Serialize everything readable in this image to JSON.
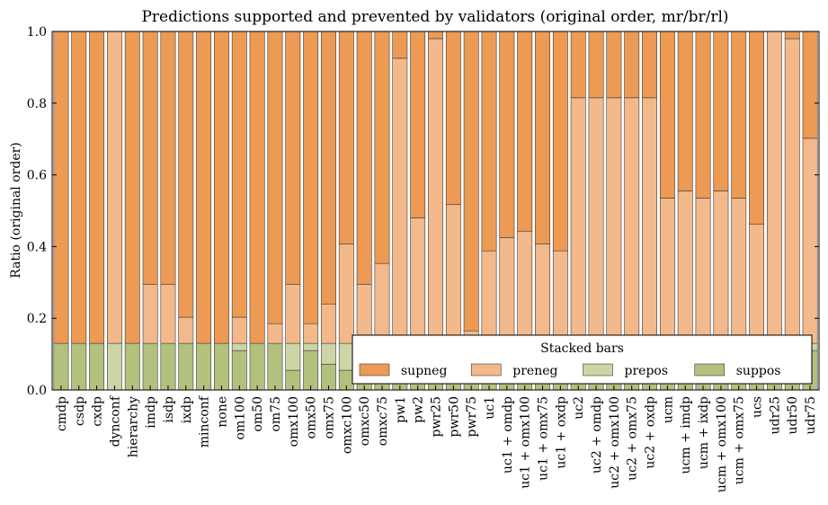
{
  "chart_data": {
    "type": "bar",
    "stacked": true,
    "title": "Predictions supported and prevented by validators (original order, mr/br/rl)",
    "xlabel": "",
    "ylabel": "Ratio (original order)",
    "ylim": [
      0,
      1
    ],
    "yticks": [
      "0.0",
      "0.2",
      "0.4",
      "0.6",
      "0.8",
      "1.0"
    ],
    "grid": false,
    "legend": {
      "title": "Stacked bars",
      "placement": "lower-right",
      "columns": 4
    },
    "categories": [
      "cmdp",
      "csdp",
      "cxdp",
      "dynconf",
      "hierarchy",
      "imdp",
      "isdp",
      "ixdp",
      "minconf",
      "none",
      "om100",
      "om50",
      "om75",
      "omx100",
      "omx50",
      "omx75",
      "omxc100",
      "omxc50",
      "omxc75",
      "pw1",
      "pw2",
      "pwr25",
      "pwr50",
      "pwr75",
      "uc1",
      "uc1 + omdp",
      "uc1 + omx100",
      "uc1 + omx75",
      "uc1 + oxdp",
      "uc2",
      "uc2 + omdp",
      "uc2 + omx100",
      "uc2 + omx75",
      "uc2 + oxdp",
      "ucm",
      "ucm + imdp",
      "ucm + ixdp",
      "ucm + omx100",
      "ucm + omx75",
      "ucs",
      "udr25",
      "udr50",
      "udr75"
    ],
    "series": [
      {
        "name": "suppos",
        "color": "#b3c17f",
        "values": [
          0.13,
          0.13,
          0.13,
          0,
          0.13,
          0.13,
          0.13,
          0.13,
          0.13,
          0.13,
          0.11,
          0.13,
          0.13,
          0.055,
          0.11,
          0.072,
          0.055,
          0.11,
          0.11,
          0.11,
          0.11,
          0.11,
          0.11,
          0.11,
          0.11,
          0.11,
          0.11,
          0.11,
          0.11,
          0.11,
          0.11,
          0.11,
          0.11,
          0.11,
          0.11,
          0.11,
          0.11,
          0.11,
          0.11,
          0.11,
          0.11,
          0.11,
          0.11
        ]
      },
      {
        "name": "prepos",
        "color": "#ccd5a6",
        "values": [
          0,
          0,
          0,
          0.13,
          0,
          0,
          0,
          0,
          0,
          0,
          0.02,
          0,
          0,
          0.075,
          0.02,
          0.058,
          0.075,
          0.02,
          0.02,
          0.02,
          0.02,
          0.02,
          0.02,
          0.02,
          0.02,
          0.02,
          0.02,
          0.02,
          0.02,
          0.02,
          0.02,
          0.02,
          0.02,
          0.02,
          0.02,
          0.02,
          0.02,
          0.02,
          0.02,
          0.02,
          0.02,
          0.02,
          0.02
        ]
      },
      {
        "name": "preneg",
        "color": "#f3b98a",
        "values": [
          0,
          0,
          0,
          0.87,
          0,
          0.165,
          0.165,
          0.073,
          0,
          0,
          0.073,
          0,
          0.055,
          0.165,
          0.055,
          0.11,
          0.277,
          0.165,
          0.223,
          0.795,
          0.35,
          0.85,
          0.387,
          0.035,
          0.258,
          0.295,
          0.313,
          0.277,
          0.258,
          0.685,
          0.685,
          0.685,
          0.685,
          0.685,
          0.405,
          0.425,
          0.405,
          0.425,
          0.405,
          0.333,
          0.87,
          0.85,
          0.572
        ]
      },
      {
        "name": "supneg",
        "color": "#ec9a54",
        "values": [
          0.87,
          0.87,
          0.87,
          0,
          0.87,
          0.705,
          0.705,
          0.797,
          0.87,
          0.87,
          0.797,
          0.87,
          0.815,
          0.705,
          0.815,
          0.76,
          0.593,
          0.705,
          0.647,
          0.075,
          0.52,
          0.02,
          0.483,
          0.835,
          0.612,
          0.575,
          0.557,
          0.593,
          0.612,
          0.185,
          0.185,
          0.185,
          0.185,
          0.185,
          0.465,
          0.445,
          0.465,
          0.445,
          0.465,
          0.537,
          0,
          0.02,
          0.298
        ]
      }
    ]
  }
}
